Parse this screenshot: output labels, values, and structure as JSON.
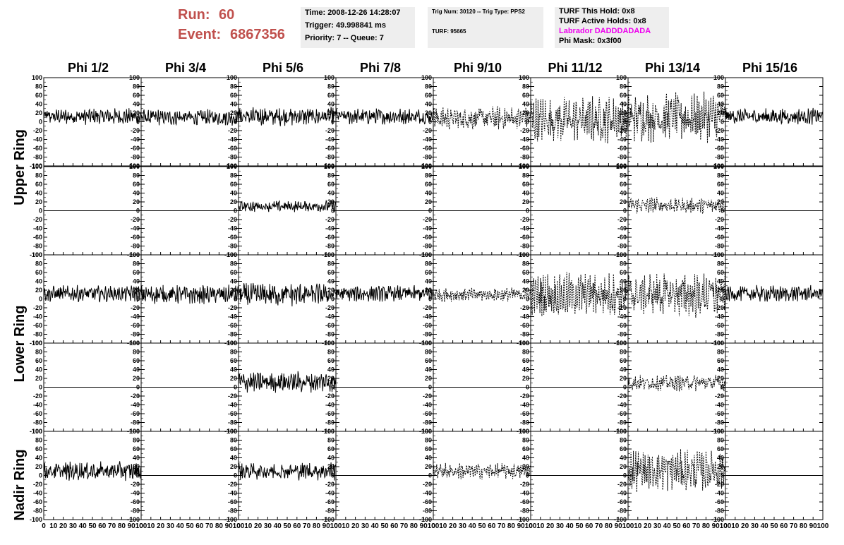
{
  "header": {
    "run_label": "Run:",
    "run_value": "60",
    "event_label": "Event:",
    "event_value": "6867356",
    "time_line": "Time: 2008-12-26 14:28:07",
    "trigger_line": "Trigger: 49.998841 ms",
    "priority_line": "Priority: 7 -- Queue: 7",
    "trig_line": "Trig Num: 30120 -- Trig Type: PPS2",
    "turf_line": "TURF: 95665",
    "hold_line": "TURF This Hold: 0x8",
    "active_holds_line": "TURF Active Holds: 0x8",
    "labrador_line": "Labrador DADDDADADA",
    "phi_mask_line": "Phi Mask: 0x3f00",
    "run_color": "#c0504d",
    "labrador_color": "#ee00ee",
    "info_bg": "#eeeeee"
  },
  "columns": [
    "Phi 1/2",
    "Phi 3/4",
    "Phi 5/6",
    "Phi 7/8",
    "Phi 9/10",
    "Phi 11/12",
    "Phi 13/14",
    "Phi 15/16"
  ],
  "rings": [
    "Upper Ring",
    "Lower Ring",
    "Nadir Ring"
  ],
  "chart_data": {
    "type": "line",
    "xlim": [
      0,
      100
    ],
    "ylim": [
      -100,
      100
    ],
    "x_ticks": [
      0,
      10,
      20,
      30,
      40,
      50,
      60,
      70,
      80,
      90,
      100
    ],
    "y_ticks": [
      -100,
      -80,
      -60,
      -40,
      -20,
      0,
      20,
      40,
      60,
      80,
      100
    ],
    "x_tick_labels": [
      "0",
      "10",
      "20",
      "30",
      "40",
      "50",
      "60",
      "70",
      "80",
      "90",
      "100"
    ],
    "y_tick_labels": [
      "-100",
      "-80",
      "-60",
      "-40",
      "-20",
      "0",
      "20",
      "40",
      "60",
      "80",
      "100"
    ],
    "panel_rows": 5,
    "panel_cols": 8,
    "panels": [
      {
        "row": 0,
        "col": 0,
        "style": "solid",
        "amp": 14,
        "offset": 12
      },
      {
        "row": 0,
        "col": 1,
        "style": "solid",
        "amp": 14,
        "offset": 10
      },
      {
        "row": 0,
        "col": 2,
        "style": "solid",
        "amp": 16,
        "offset": 12
      },
      {
        "row": 0,
        "col": 3,
        "style": "solid",
        "amp": 14,
        "offset": 12
      },
      {
        "row": 0,
        "col": 4,
        "style": "dashed",
        "amp": 20,
        "offset": 8
      },
      {
        "row": 0,
        "col": 5,
        "style": "dashed",
        "amp": 40,
        "offset": 5
      },
      {
        "row": 0,
        "col": 6,
        "style": "dashed",
        "amp": 42,
        "offset": 10
      },
      {
        "row": 0,
        "col": 7,
        "style": "solid",
        "amp": 14,
        "offset": 12
      },
      {
        "row": 1,
        "col": 0,
        "style": "flat",
        "amp": 0,
        "offset": 0
      },
      {
        "row": 1,
        "col": 1,
        "style": "flat",
        "amp": 0,
        "offset": 0
      },
      {
        "row": 1,
        "col": 2,
        "style": "solid",
        "amp": 10,
        "offset": 10
      },
      {
        "row": 1,
        "col": 3,
        "style": "flat",
        "amp": 0,
        "offset": 0
      },
      {
        "row": 1,
        "col": 4,
        "style": "flat",
        "amp": 0,
        "offset": 0
      },
      {
        "row": 1,
        "col": 5,
        "style": "flat",
        "amp": 0,
        "offset": 0
      },
      {
        "row": 1,
        "col": 6,
        "style": "dashed",
        "amp": 14,
        "offset": 12
      },
      {
        "row": 1,
        "col": 7,
        "style": "flat",
        "amp": 0,
        "offset": 0
      },
      {
        "row": 2,
        "col": 0,
        "style": "solid",
        "amp": 14,
        "offset": 12
      },
      {
        "row": 2,
        "col": 1,
        "style": "solid",
        "amp": 16,
        "offset": 10
      },
      {
        "row": 2,
        "col": 2,
        "style": "solid",
        "amp": 20,
        "offset": 10
      },
      {
        "row": 2,
        "col": 3,
        "style": "solid",
        "amp": 14,
        "offset": 12
      },
      {
        "row": 2,
        "col": 4,
        "style": "dashed",
        "amp": 12,
        "offset": 10
      },
      {
        "row": 2,
        "col": 5,
        "style": "dashed",
        "amp": 38,
        "offset": 10
      },
      {
        "row": 2,
        "col": 6,
        "style": "dashed",
        "amp": 40,
        "offset": 10
      },
      {
        "row": 2,
        "col": 7,
        "style": "solid",
        "amp": 14,
        "offset": 12
      },
      {
        "row": 3,
        "col": 0,
        "style": "flat",
        "amp": 0,
        "offset": 0
      },
      {
        "row": 3,
        "col": 1,
        "style": "flat",
        "amp": 0,
        "offset": 0
      },
      {
        "row": 3,
        "col": 2,
        "style": "solid",
        "amp": 18,
        "offset": 12
      },
      {
        "row": 3,
        "col": 3,
        "style": "flat",
        "amp": 0,
        "offset": 0
      },
      {
        "row": 3,
        "col": 4,
        "style": "flat",
        "amp": 0,
        "offset": 0
      },
      {
        "row": 3,
        "col": 5,
        "style": "flat",
        "amp": 0,
        "offset": 0
      },
      {
        "row": 3,
        "col": 6,
        "style": "dashed",
        "amp": 14,
        "offset": 10
      },
      {
        "row": 3,
        "col": 7,
        "style": "flat",
        "amp": 0,
        "offset": 0
      },
      {
        "row": 4,
        "col": 0,
        "style": "solid",
        "amp": 16,
        "offset": 10
      },
      {
        "row": 4,
        "col": 1,
        "style": "flat",
        "amp": 0,
        "offset": 0
      },
      {
        "row": 4,
        "col": 2,
        "style": "solid",
        "amp": 16,
        "offset": 10
      },
      {
        "row": 4,
        "col": 3,
        "style": "flat",
        "amp": 0,
        "offset": 0
      },
      {
        "row": 4,
        "col": 4,
        "style": "dashed",
        "amp": 14,
        "offset": 10
      },
      {
        "row": 4,
        "col": 5,
        "style": "flat",
        "amp": 0,
        "offset": 0
      },
      {
        "row": 4,
        "col": 6,
        "style": "dashed",
        "amp": 36,
        "offset": 12
      },
      {
        "row": 4,
        "col": 7,
        "style": "flat",
        "amp": 0,
        "offset": 0
      }
    ]
  }
}
